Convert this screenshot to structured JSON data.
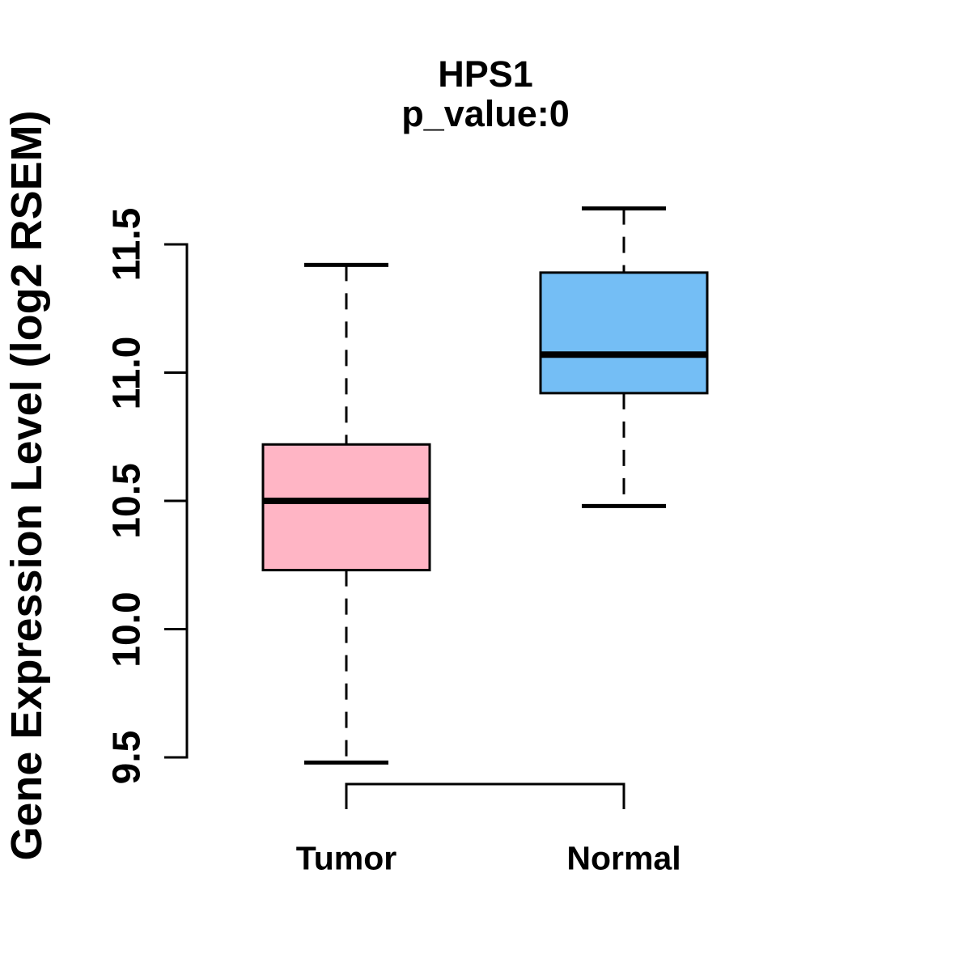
{
  "chart_data": {
    "type": "boxplot",
    "title": "HPS1",
    "subtitle": "p_value:0",
    "xlabel": "",
    "ylabel": "Gene Expression Level (log2 RSEM)",
    "categories": [
      "Tumor",
      "Normal"
    ],
    "series": [
      {
        "name": "Tumor",
        "color": "#FFB5C5",
        "min": 9.48,
        "q1": 10.23,
        "median": 10.5,
        "q3": 10.72,
        "max": 11.42
      },
      {
        "name": "Normal",
        "color": "#74BEF5",
        "min": 10.48,
        "q1": 10.92,
        "median": 11.07,
        "q3": 11.39,
        "max": 11.64
      }
    ],
    "ylim": [
      9.5,
      11.5
    ],
    "yticks": [
      9.5,
      10.0,
      10.5,
      11.0,
      11.5
    ],
    "ytick_labels": [
      "9.5",
      "10.0",
      "10.5",
      "11.0",
      "11.5"
    ],
    "grid": false,
    "legend": "none",
    "whisker_style": "dashed",
    "comparison_bracket": {
      "between": [
        "Tumor",
        "Normal"
      ]
    },
    "stroke_color": "#000000",
    "background_color": "#ffffff"
  }
}
